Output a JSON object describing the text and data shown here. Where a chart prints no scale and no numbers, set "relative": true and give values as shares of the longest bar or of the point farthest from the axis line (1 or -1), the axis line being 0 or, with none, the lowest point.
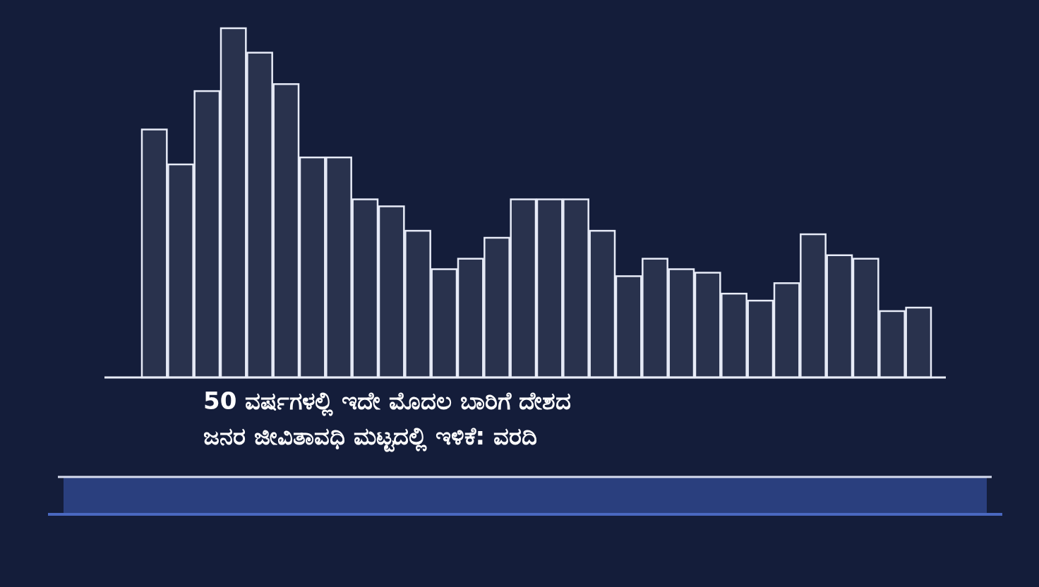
{
  "chart_data": {
    "type": "bar",
    "relative": true,
    "title": "50 ವರ್ಷಗಳಲ್ಲಿ ಇದೇ ಮೊದಲ ಬಾರಿಗೆ ದೇಶದ\nಜನರ ಜೀವಿತಾವಧಿ ಮಟ್ಟದಲ್ಲಿ ಇಳಿಕೆ: ವರದಿ",
    "categories": [
      null,
      null,
      null,
      null,
      null,
      null,
      null,
      null,
      null,
      null,
      null,
      null,
      null,
      null,
      null,
      null,
      null,
      null,
      null,
      null,
      null,
      null,
      null,
      null,
      null,
      null,
      null,
      null,
      null,
      null
    ],
    "values": [
      0.71,
      0.61,
      0.82,
      1.0,
      0.93,
      0.84,
      0.63,
      0.63,
      0.51,
      0.49,
      0.42,
      0.31,
      0.34,
      0.4,
      0.51,
      0.51,
      0.51,
      0.42,
      0.29,
      0.34,
      0.31,
      0.3,
      0.24,
      0.22,
      0.27,
      0.41,
      0.35,
      0.34,
      0.19,
      0.2
    ],
    "color": "#e8ecf8"
  }
}
